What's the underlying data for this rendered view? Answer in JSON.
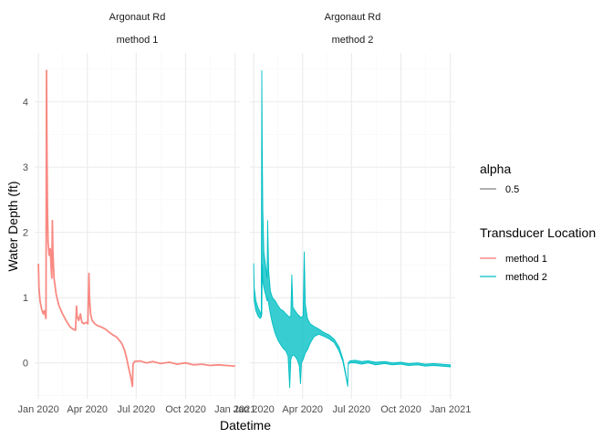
{
  "chart_data": {
    "type": "line",
    "xlabel": "Datetime",
    "ylabel": "Water Depth (ft)",
    "x_ticks": [
      "Jan 2020",
      "Apr 2020",
      "Jul 2020",
      "Oct 2020",
      "Jan 2021"
    ],
    "x_range": [
      "2019-12-25",
      "2021-01-10"
    ],
    "y_ticks": [
      "0",
      "1",
      "2",
      "3",
      "4"
    ],
    "ylim": [
      -0.55,
      4.75
    ],
    "grid": true,
    "legend_position": "right",
    "legend": {
      "alpha": {
        "title": "alpha",
        "entries": [
          "0.5"
        ],
        "color": "#7f7f7f"
      },
      "color": {
        "title": "Transducer Location",
        "entries": [
          "method 1",
          "method 2"
        ]
      }
    },
    "panels": [
      {
        "strip_top": "Argonaut Rd",
        "strip_bottom": "method 1",
        "series": [
          {
            "name": "method 1",
            "color": "#F8766D",
            "band": false,
            "points": [
              [
                "2020-01-01",
                1.52
              ],
              [
                "2020-01-02",
                1.15
              ],
              [
                "2020-01-04",
                0.95
              ],
              [
                "2020-01-07",
                0.82
              ],
              [
                "2020-01-10",
                0.75
              ],
              [
                "2020-01-12",
                0.8
              ],
              [
                "2020-01-14",
                0.72
              ],
              [
                "2020-01-15",
                0.68
              ],
              [
                "2020-01-16",
                4.48
              ],
              [
                "2020-01-17",
                3.2
              ],
              [
                "2020-01-18",
                2.3
              ],
              [
                "2020-01-19",
                1.85
              ],
              [
                "2020-01-21",
                1.65
              ],
              [
                "2020-01-23",
                1.75
              ],
              [
                "2020-01-25",
                1.4
              ],
              [
                "2020-01-26",
                1.3
              ],
              [
                "2020-01-27",
                2.18
              ],
              [
                "2020-01-28",
                1.7
              ],
              [
                "2020-01-30",
                1.3
              ],
              [
                "2020-02-03",
                1.05
              ],
              [
                "2020-02-08",
                0.88
              ],
              [
                "2020-02-15",
                0.75
              ],
              [
                "2020-02-22",
                0.64
              ],
              [
                "2020-02-29",
                0.55
              ],
              [
                "2020-03-05",
                0.52
              ],
              [
                "2020-03-10",
                0.5
              ],
              [
                "2020-03-12",
                0.87
              ],
              [
                "2020-03-13",
                0.72
              ],
              [
                "2020-03-16",
                0.65
              ],
              [
                "2020-03-19",
                0.75
              ],
              [
                "2020-03-22",
                0.62
              ],
              [
                "2020-03-26",
                0.6
              ],
              [
                "2020-03-30",
                0.62
              ],
              [
                "2020-04-02",
                0.6
              ],
              [
                "2020-04-04",
                1.37
              ],
              [
                "2020-04-05",
                1.0
              ],
              [
                "2020-04-07",
                0.75
              ],
              [
                "2020-04-10",
                0.65
              ],
              [
                "2020-04-15",
                0.6
              ],
              [
                "2020-04-20",
                0.57
              ],
              [
                "2020-04-27",
                0.55
              ],
              [
                "2020-05-04",
                0.52
              ],
              [
                "2020-05-10",
                0.48
              ],
              [
                "2020-05-15",
                0.45
              ],
              [
                "2020-05-20",
                0.42
              ],
              [
                "2020-05-25",
                0.4
              ],
              [
                "2020-05-30",
                0.35
              ],
              [
                "2020-06-04",
                0.3
              ],
              [
                "2020-06-09",
                0.2
              ],
              [
                "2020-06-13",
                0.08
              ],
              [
                "2020-06-17",
                -0.08
              ],
              [
                "2020-06-21",
                -0.22
              ],
              [
                "2020-06-24",
                -0.36
              ],
              [
                "2020-06-25",
                -0.02
              ],
              [
                "2020-06-28",
                0.02
              ],
              [
                "2020-07-08",
                0.03
              ],
              [
                "2020-07-20",
                0.0
              ],
              [
                "2020-08-01",
                0.02
              ],
              [
                "2020-08-15",
                -0.01
              ],
              [
                "2020-09-01",
                0.01
              ],
              [
                "2020-09-15",
                -0.02
              ],
              [
                "2020-10-01",
                0.0
              ],
              [
                "2020-10-15",
                -0.03
              ],
              [
                "2020-11-01",
                -0.02
              ],
              [
                "2020-11-15",
                -0.04
              ],
              [
                "2020-12-01",
                -0.03
              ],
              [
                "2020-12-15",
                -0.04
              ],
              [
                "2021-01-01",
                -0.05
              ]
            ]
          }
        ]
      },
      {
        "strip_top": "Argonaut Rd",
        "strip_bottom": "method 2",
        "series": [
          {
            "name": "method 2",
            "color": "#00BFC4",
            "band": true,
            "points": [
              [
                "2020-01-01",
                1.52,
                1.52
              ],
              [
                "2020-01-02",
                0.95,
                1.15
              ],
              [
                "2020-01-05",
                0.8,
                0.95
              ],
              [
                "2020-01-09",
                0.72,
                0.85
              ],
              [
                "2020-01-13",
                0.68,
                0.78
              ],
              [
                "2020-01-15",
                0.7,
                0.72
              ],
              [
                "2020-01-16",
                0.75,
                4.48
              ],
              [
                "2020-01-17",
                1.5,
                3.3
              ],
              [
                "2020-01-18",
                1.25,
                2.35
              ],
              [
                "2020-01-20",
                1.15,
                1.7
              ],
              [
                "2020-01-23",
                1.05,
                1.5
              ],
              [
                "2020-01-26",
                0.95,
                1.3
              ],
              [
                "2020-01-27",
                1.0,
                2.18
              ],
              [
                "2020-01-29",
                0.9,
                1.4
              ],
              [
                "2020-02-01",
                0.75,
                1.1
              ],
              [
                "2020-02-05",
                0.6,
                1.0
              ],
              [
                "2020-02-10",
                0.45,
                0.95
              ],
              [
                "2020-02-15",
                0.35,
                0.88
              ],
              [
                "2020-02-20",
                0.28,
                0.82
              ],
              [
                "2020-02-25",
                0.22,
                0.8
              ],
              [
                "2020-03-01",
                0.18,
                0.75
              ],
              [
                "2020-03-05",
                0.1,
                0.72
              ],
              [
                "2020-03-08",
                -0.38,
                0.7
              ],
              [
                "2020-03-10",
                0.05,
                0.72
              ],
              [
                "2020-03-12",
                0.1,
                1.35
              ],
              [
                "2020-03-14",
                0.12,
                0.85
              ],
              [
                "2020-03-18",
                0.1,
                0.8
              ],
              [
                "2020-03-22",
                0.05,
                0.75
              ],
              [
                "2020-03-26",
                -0.05,
                0.72
              ],
              [
                "2020-03-28",
                -0.32,
                0.7
              ],
              [
                "2020-03-30",
                0.0,
                0.7
              ],
              [
                "2020-04-02",
                0.05,
                0.72
              ],
              [
                "2020-04-04",
                0.1,
                1.7
              ],
              [
                "2020-04-06",
                0.15,
                0.9
              ],
              [
                "2020-04-10",
                0.2,
                0.68
              ],
              [
                "2020-04-15",
                0.3,
                0.6
              ],
              [
                "2020-04-22",
                0.4,
                0.56
              ],
              [
                "2020-05-01",
                0.44,
                0.52
              ],
              [
                "2020-05-10",
                0.41,
                0.47
              ],
              [
                "2020-05-20",
                0.37,
                0.43
              ],
              [
                "2020-05-30",
                0.31,
                0.36
              ],
              [
                "2020-06-08",
                0.18,
                0.24
              ],
              [
                "2020-06-15",
                0.02,
                0.06
              ],
              [
                "2020-06-20",
                -0.18,
                -0.14
              ],
              [
                "2020-06-24",
                -0.36,
                -0.34
              ],
              [
                "2020-06-25",
                -0.02,
                0.0
              ],
              [
                "2020-06-28",
                0.0,
                0.03
              ],
              [
                "2020-07-08",
                0.0,
                0.04
              ],
              [
                "2020-07-20",
                -0.02,
                0.02
              ],
              [
                "2020-08-01",
                0.0,
                0.03
              ],
              [
                "2020-08-15",
                -0.03,
                0.01
              ],
              [
                "2020-09-01",
                -0.01,
                0.02
              ],
              [
                "2020-09-15",
                -0.03,
                0.0
              ],
              [
                "2020-10-01",
                -0.02,
                0.01
              ],
              [
                "2020-10-15",
                -0.04,
                -0.01
              ],
              [
                "2020-11-01",
                -0.03,
                0.0
              ],
              [
                "2020-11-15",
                -0.05,
                -0.02
              ],
              [
                "2020-12-01",
                -0.04,
                -0.01
              ],
              [
                "2020-12-15",
                -0.05,
                -0.02
              ],
              [
                "2021-01-01",
                -0.06,
                -0.03
              ]
            ]
          }
        ]
      }
    ]
  }
}
